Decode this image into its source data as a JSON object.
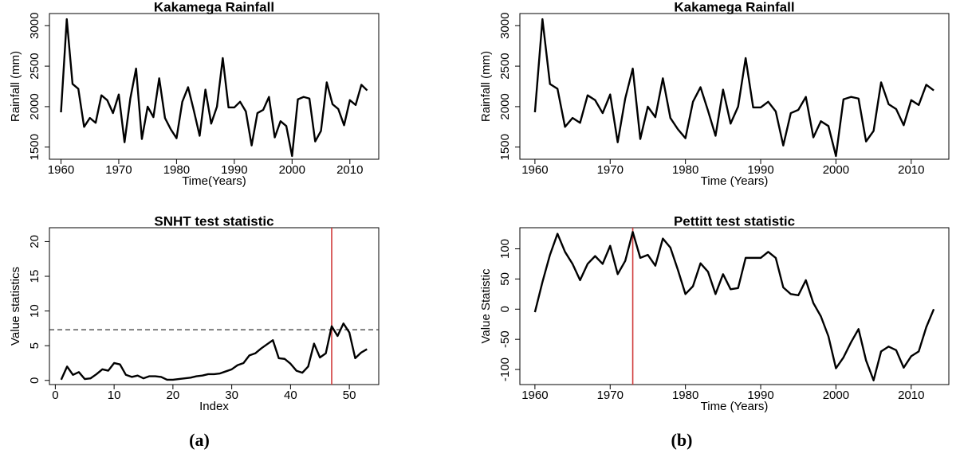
{
  "chart_data": [
    {
      "type": "line",
      "title": "Kakamega Rainfall",
      "x_label": "Time(Years)",
      "y_label": "Rainfall (mm)",
      "x": [
        1960,
        1961,
        1962,
        1963,
        1964,
        1965,
        1966,
        1967,
        1968,
        1969,
        1970,
        1971,
        1972,
        1973,
        1974,
        1975,
        1976,
        1977,
        1978,
        1979,
        1980,
        1981,
        1982,
        1983,
        1984,
        1985,
        1986,
        1987,
        1988,
        1989,
        1990,
        1991,
        1992,
        1993,
        1994,
        1995,
        1996,
        1997,
        1998,
        1999,
        2000,
        2001,
        2002,
        2003,
        2004,
        2005,
        2006,
        2007,
        2008,
        2009,
        2010,
        2011,
        2012,
        2013
      ],
      "values": [
        1930,
        3080,
        2280,
        2220,
        1750,
        1860,
        1800,
        2140,
        2080,
        1920,
        2150,
        1560,
        2100,
        2470,
        1600,
        2000,
        1870,
        2350,
        1860,
        1720,
        1610,
        2060,
        2240,
        1950,
        1640,
        2210,
        1790,
        2000,
        2600,
        1990,
        1990,
        2060,
        1940,
        1520,
        1920,
        1960,
        2120,
        1620,
        1820,
        1760,
        1390,
        2090,
        2120,
        2100,
        1570,
        1700,
        2300,
        2030,
        1970,
        1770,
        2080,
        2020,
        2270,
        2200
      ],
      "color": "#000000",
      "xlim": [
        1958,
        2015
      ],
      "xticks": [
        1960,
        1970,
        1980,
        1990,
        2000,
        2010
      ],
      "ylim": [
        1350,
        3150
      ],
      "yticks": [
        1500,
        2000,
        2500,
        3000
      ]
    },
    {
      "type": "line",
      "title": "Kakamega Rainfall",
      "x_label": "Time (Years)",
      "y_label": "Rainfall (mm)",
      "x": [
        1960,
        1961,
        1962,
        1963,
        1964,
        1965,
        1966,
        1967,
        1968,
        1969,
        1970,
        1971,
        1972,
        1973,
        1974,
        1975,
        1976,
        1977,
        1978,
        1979,
        1980,
        1981,
        1982,
        1983,
        1984,
        1985,
        1986,
        1987,
        1988,
        1989,
        1990,
        1991,
        1992,
        1993,
        1994,
        1995,
        1996,
        1997,
        1998,
        1999,
        2000,
        2001,
        2002,
        2003,
        2004,
        2005,
        2006,
        2007,
        2008,
        2009,
        2010,
        2011,
        2012,
        2013
      ],
      "values": [
        1930,
        3080,
        2280,
        2220,
        1750,
        1860,
        1800,
        2140,
        2080,
        1920,
        2150,
        1560,
        2100,
        2470,
        1600,
        2000,
        1870,
        2350,
        1860,
        1720,
        1610,
        2060,
        2240,
        1950,
        1640,
        2210,
        1790,
        2000,
        2600,
        1990,
        1990,
        2060,
        1940,
        1520,
        1920,
        1960,
        2120,
        1620,
        1820,
        1760,
        1390,
        2090,
        2120,
        2100,
        1570,
        1700,
        2300,
        2030,
        1970,
        1770,
        2080,
        2020,
        2270,
        2200
      ],
      "color": "#000000",
      "xlim": [
        1958,
        2015
      ],
      "xticks": [
        1960,
        1970,
        1980,
        1990,
        2000,
        2010
      ],
      "ylim": [
        1350,
        3150
      ],
      "yticks": [
        1500,
        2000,
        2500,
        3000
      ]
    },
    {
      "type": "line",
      "title": "SNHT test statistic",
      "x_label": "Index",
      "y_label": "Value statistics",
      "x": [
        1,
        2,
        3,
        4,
        5,
        6,
        7,
        8,
        9,
        10,
        11,
        12,
        13,
        14,
        15,
        16,
        17,
        18,
        19,
        20,
        21,
        22,
        23,
        24,
        25,
        26,
        27,
        28,
        29,
        30,
        31,
        32,
        33,
        34,
        35,
        36,
        37,
        38,
        39,
        40,
        41,
        42,
        43,
        44,
        45,
        46,
        47,
        48,
        49,
        50,
        51,
        52,
        53
      ],
      "values": [
        0.1,
        2.0,
        0.8,
        1.2,
        0.2,
        0.3,
        0.9,
        1.6,
        1.4,
        2.5,
        2.3,
        0.8,
        0.5,
        0.7,
        0.3,
        0.6,
        0.6,
        0.5,
        0.1,
        0.1,
        0.2,
        0.3,
        0.4,
        0.6,
        0.7,
        0.9,
        0.9,
        1.0,
        1.3,
        1.6,
        2.2,
        2.5,
        3.6,
        3.9,
        4.6,
        5.2,
        5.8,
        3.2,
        3.1,
        2.4,
        1.4,
        1.1,
        2.0,
        5.3,
        3.3,
        3.9,
        7.8,
        6.4,
        8.2,
        6.9,
        3.2,
        4.0,
        4.5
      ],
      "color": "#000000",
      "xlim": [
        -1,
        55
      ],
      "xticks": [
        0,
        10,
        20,
        30,
        40,
        50
      ],
      "ylim": [
        -0.6,
        22
      ],
      "yticks": [
        0,
        5,
        10,
        15,
        20
      ],
      "vline": 47,
      "vline_color": "#d03a3a",
      "hline": 7.3,
      "hline_color": "#333333"
    },
    {
      "type": "line",
      "title": "Pettitt test statistic",
      "x_label": "Time (Years)",
      "y_label": "Value Statistic",
      "x": [
        1960,
        1961,
        1962,
        1963,
        1964,
        1965,
        1966,
        1967,
        1968,
        1969,
        1970,
        1971,
        1972,
        1973,
        1974,
        1975,
        1976,
        1977,
        1978,
        1979,
        1980,
        1981,
        1982,
        1983,
        1984,
        1985,
        1986,
        1987,
        1988,
        1989,
        1990,
        1991,
        1992,
        1993,
        1994,
        1995,
        1996,
        1997,
        1998,
        1999,
        2000,
        2001,
        2002,
        2003,
        2004,
        2005,
        2006,
        2007,
        2008,
        2009,
        2010,
        2011,
        2012,
        2013
      ],
      "values": [
        -5,
        45,
        90,
        125,
        95,
        75,
        48,
        75,
        88,
        75,
        105,
        58,
        80,
        128,
        85,
        90,
        72,
        117,
        102,
        65,
        25,
        38,
        76,
        62,
        25,
        58,
        33,
        35,
        85,
        85,
        85,
        95,
        85,
        36,
        25,
        23,
        48,
        10,
        -12,
        -45,
        -98,
        -80,
        -55,
        -33,
        -85,
        -118,
        -70,
        -62,
        -68,
        -97,
        -78,
        -70,
        -30,
        0
      ],
      "color": "#000000",
      "xlim": [
        1958,
        2015
      ],
      "xticks": [
        1960,
        1970,
        1980,
        1990,
        2000,
        2010
      ],
      "ylim": [
        -125,
        135
      ],
      "yticks": [
        -100,
        -50,
        0,
        50,
        100
      ],
      "vline": 1973,
      "vline_color": "#d03a3a"
    }
  ],
  "panel_labels": [
    "(a)",
    "(b)"
  ]
}
